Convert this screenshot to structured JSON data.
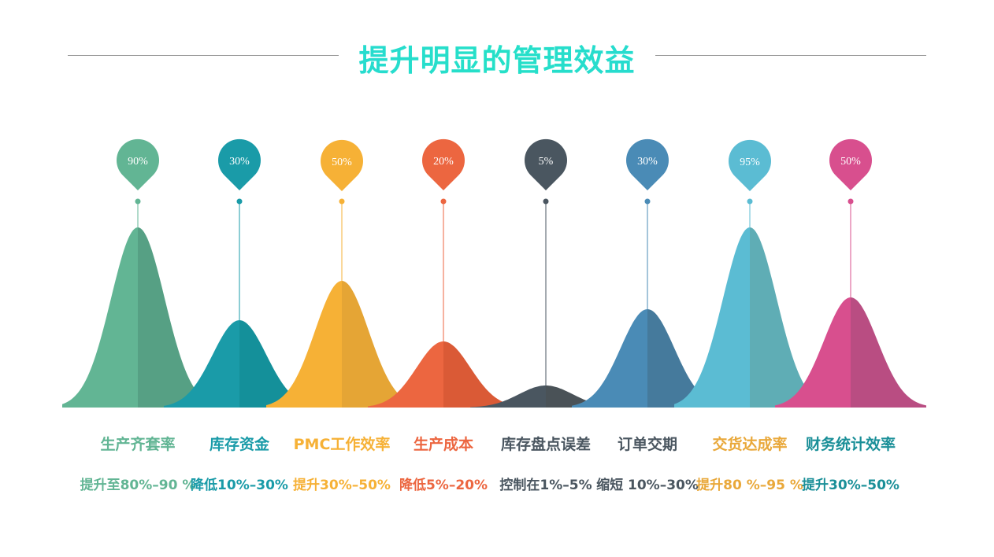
{
  "title": "提升明显的管理效益",
  "chart_data": {
    "type": "area",
    "title": "提升明显的管理效益",
    "categories": [
      "生产齐套率",
      "库存资金",
      "PMC工作效率",
      "生产成本",
      "库存盘点误差",
      "订单交期",
      "交货达成率",
      "财务统计效率"
    ],
    "values": [
      90,
      30,
      50,
      20,
      5,
      30,
      95,
      50
    ],
    "value_labels": [
      "90%",
      "30%",
      "50%",
      "20%",
      "5%",
      "30%",
      "95%",
      "50%"
    ],
    "descriptions": [
      "提升至80%–90 %",
      "降低10%–30%",
      "提升30%–50%",
      "降低5%–20%",
      "控制在1%–5%",
      "缩短 10%–30%",
      "提升80 %–95 %",
      "提升30%–50%"
    ],
    "colors": [
      "#62b594",
      "#1a9ba8",
      "#f6b136",
      "#ec6640",
      "#4a5660",
      "#4a8bb6",
      "#5bbcd3",
      "#d84f8e"
    ],
    "shade_colors": [
      "#56a084",
      "#14909a",
      "#e5a535",
      "#da5a36",
      "#4a5257",
      "#457a9c",
      "#5fadb5",
      "#b94d82"
    ],
    "label_colors": [
      "#62b594",
      "#1a9ba8",
      "#f6b136",
      "#ec6640",
      "#4a5660",
      "#4a5660",
      "#e9a83a",
      "#1a8f98"
    ]
  }
}
